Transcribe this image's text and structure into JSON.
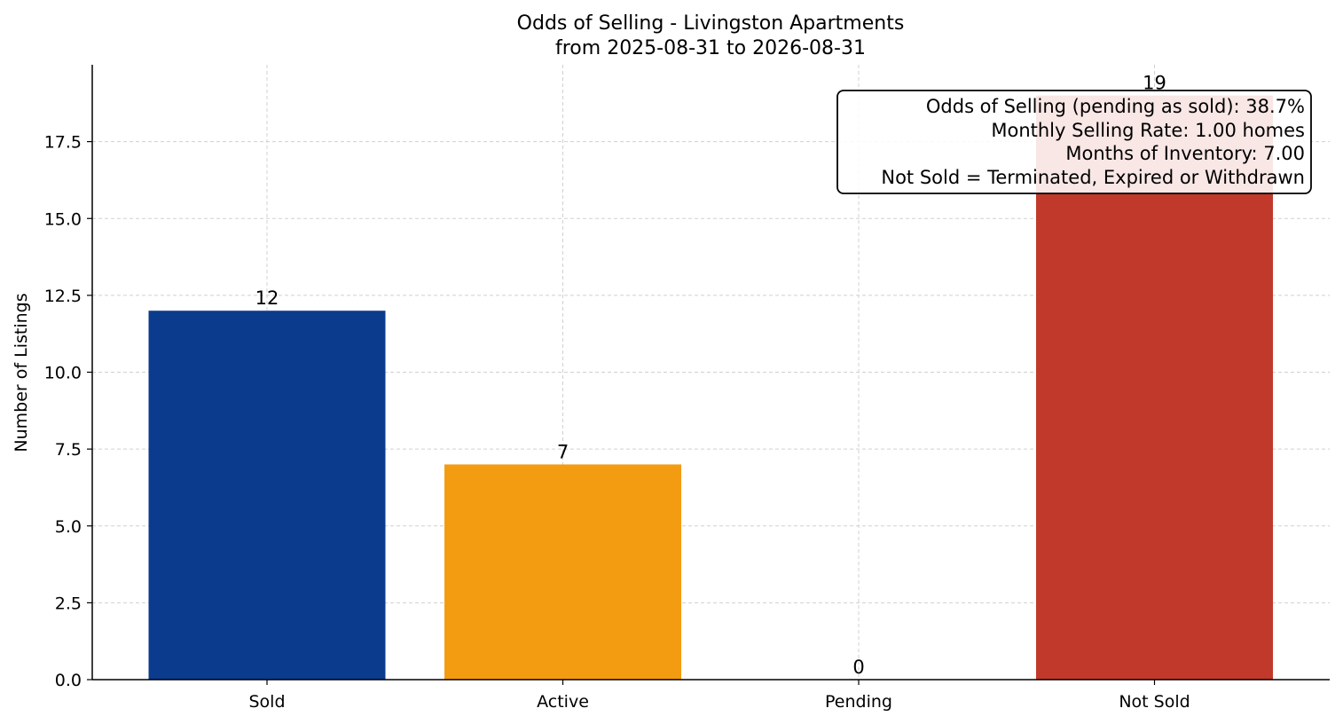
{
  "chart_data": {
    "type": "bar",
    "title": "Odds of Selling - Livingston Apartments",
    "subtitle": "from 2025-08-31 to 2026-08-31",
    "xlabel": "",
    "ylabel": "Number of Listings",
    "categories": [
      "Sold",
      "Active",
      "Pending",
      "Not Sold"
    ],
    "values": [
      12,
      7,
      0,
      19
    ],
    "colors": [
      "#0b3b8c",
      "#f39c12",
      "#7f8c8d",
      "#c0392b"
    ],
    "ylim": [
      0,
      20
    ],
    "yticks": [
      0.0,
      2.5,
      5.0,
      7.5,
      10.0,
      12.5,
      15.0,
      17.5
    ],
    "ytick_labels": [
      "0.0",
      "2.5",
      "5.0",
      "7.5",
      "10.0",
      "12.5",
      "15.0",
      "17.5"
    ],
    "grid": true,
    "info_box": {
      "placement": "top-right",
      "lines": [
        "Odds of Selling (pending as sold): 38.7%",
        "Monthly Selling Rate: 1.00 homes",
        "Months of Inventory: 7.00",
        "Not Sold = Terminated, Expired or Withdrawn"
      ]
    }
  }
}
